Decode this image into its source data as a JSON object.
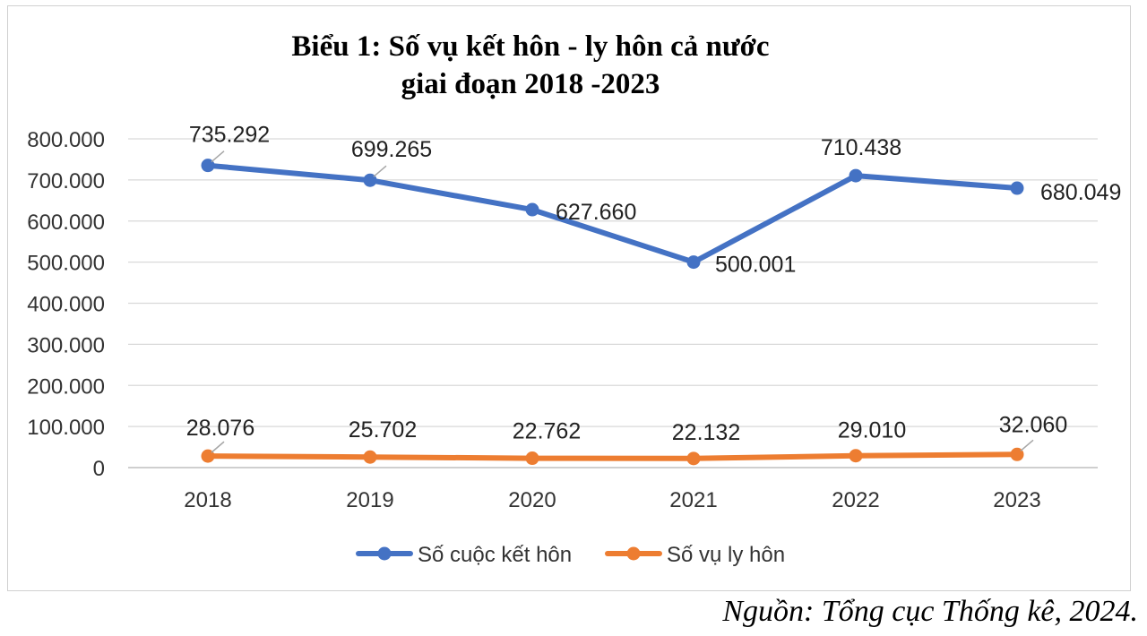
{
  "chart_data": {
    "type": "line",
    "title_lines": [
      "Biểu 1: Số vụ kết hôn - ly hôn cả nước",
      "giai đoạn 2018 -2023"
    ],
    "categories": [
      "2018",
      "2019",
      "2020",
      "2021",
      "2022",
      "2023"
    ],
    "ylim": [
      0,
      800000
    ],
    "y_ticks": [
      0,
      100000,
      200000,
      300000,
      400000,
      500000,
      600000,
      700000,
      800000
    ],
    "y_tick_labels": [
      "0",
      "100.000",
      "200.000",
      "300.000",
      "400.000",
      "500.000",
      "600.000",
      "700.000",
      "800.000"
    ],
    "grid": true,
    "legend_position": "bottom",
    "series": [
      {
        "name": "Số cuộc kết hôn",
        "color": "#4472C4",
        "values": [
          735292,
          699265,
          627660,
          500001,
          710438,
          680049
        ],
        "labels": [
          "735.292",
          "699.265",
          "627.660",
          "500.001",
          "710.438",
          "680.049"
        ]
      },
      {
        "name": "Số vụ ly hôn",
        "color": "#ED7D31",
        "values": [
          28076,
          25702,
          22762,
          22132,
          29010,
          32060
        ],
        "labels": [
          "28.076",
          "25.702",
          "22.762",
          "22.132",
          "29.010",
          "32.060"
        ]
      }
    ]
  },
  "source_note": "Nguồn: Tổng cục Thống kê, 2024."
}
